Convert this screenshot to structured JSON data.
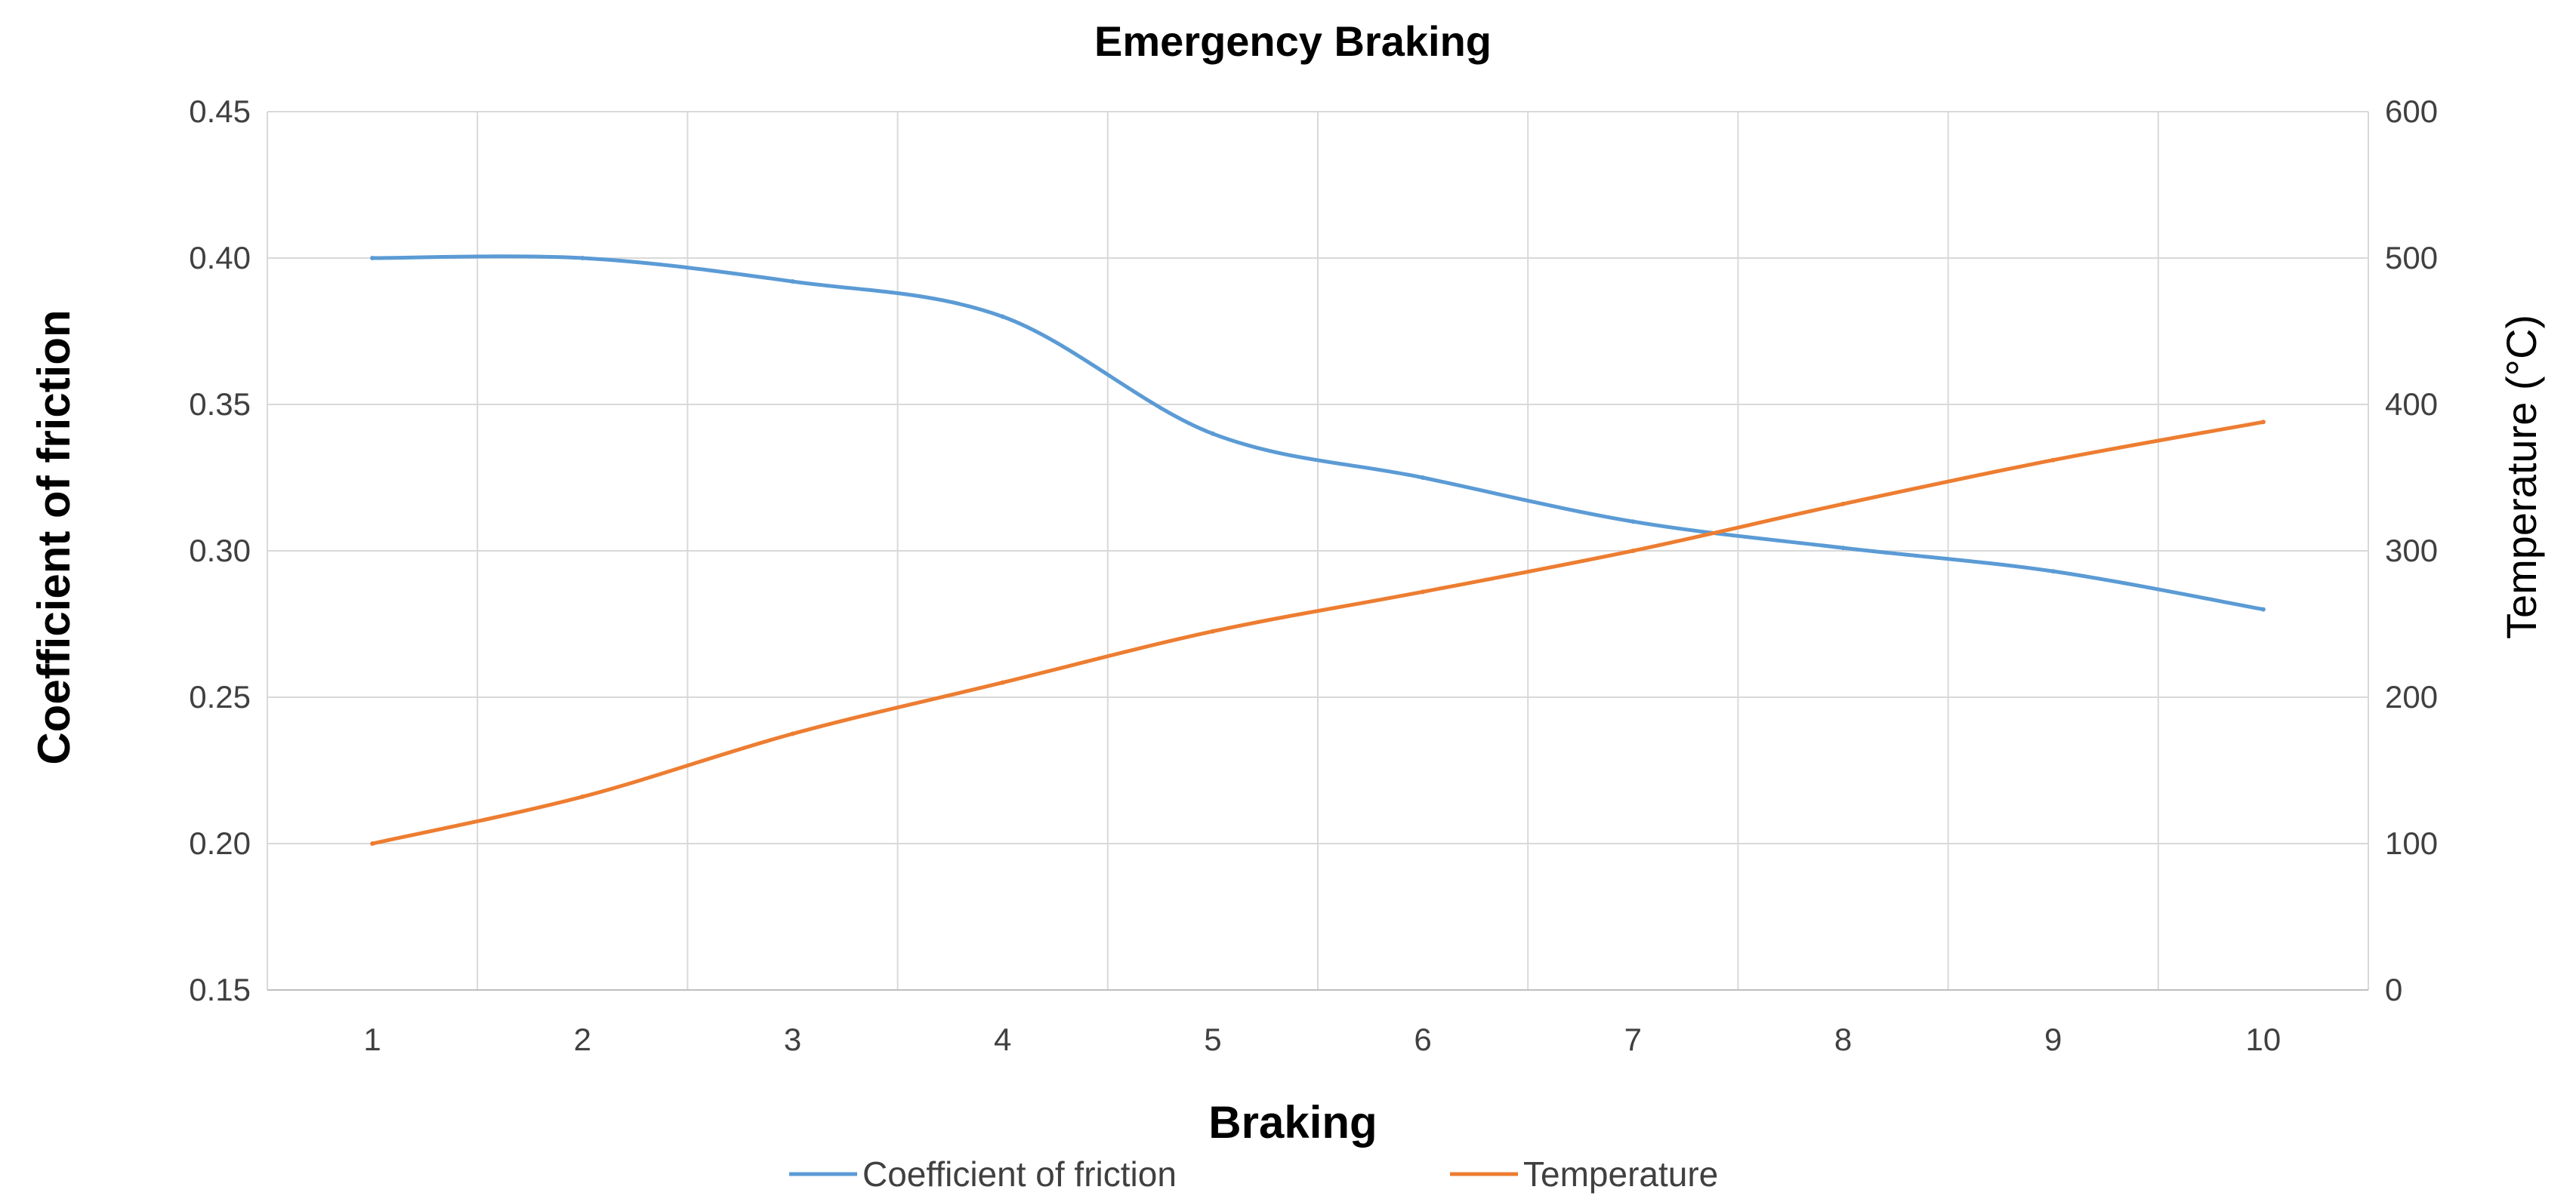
{
  "chart_data": {
    "type": "line",
    "title": "Emergency Braking",
    "xlabel": "Braking",
    "ylabel": "Coefficient of friction",
    "y2label": "Temperature (°C)",
    "categories": [
      "1",
      "2",
      "3",
      "4",
      "5",
      "6",
      "7",
      "8",
      "9",
      "10"
    ],
    "ylim": [
      0.15,
      0.45
    ],
    "yticks": [
      "0.45",
      "0.40",
      "0.35",
      "0.30",
      "0.25",
      "0.20",
      "0.15"
    ],
    "y2lim": [
      0,
      600
    ],
    "y2ticks": [
      "600",
      "500",
      "400",
      "300",
      "200",
      "100",
      "0"
    ],
    "grid": true,
    "legend_position": "bottom",
    "series": [
      {
        "name": "Coefficient of friction",
        "axis": "left",
        "color": "#5B9BD5",
        "values": [
          0.4,
          0.4,
          0.392,
          0.38,
          0.34,
          0.325,
          0.31,
          0.301,
          0.293,
          0.28
        ]
      },
      {
        "name": "Temperature",
        "axis": "right",
        "color": "#ED7D31",
        "values": [
          100,
          132,
          175,
          210,
          245,
          272,
          300,
          332,
          362,
          388
        ]
      }
    ]
  }
}
